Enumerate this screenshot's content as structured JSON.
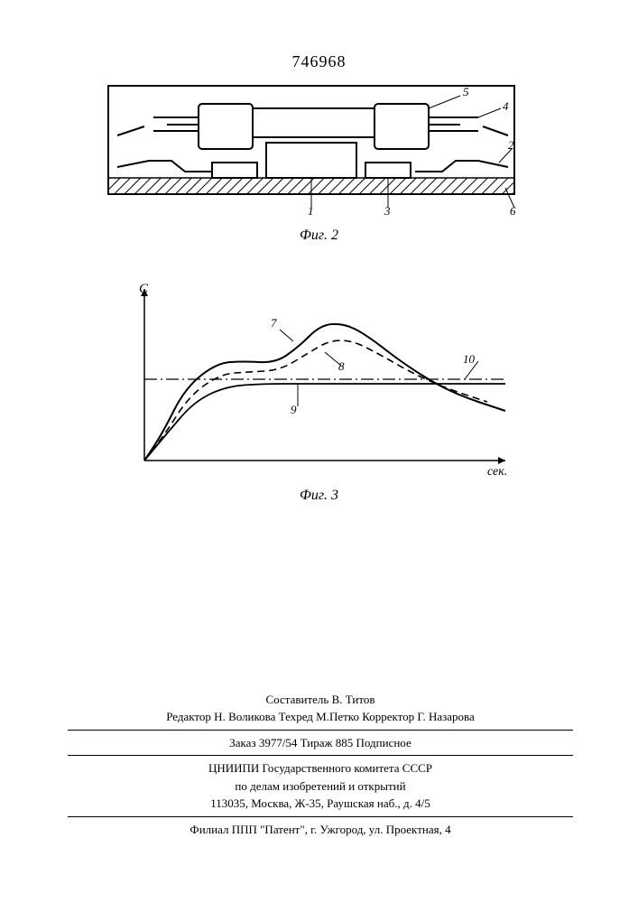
{
  "patent_number": "746968",
  "fig2": {
    "label": "Фиг. 2",
    "callouts": [
      "1",
      "2",
      "3",
      "4",
      "5",
      "6"
    ],
    "colors": {
      "stroke": "#000000",
      "hatch": "#000000",
      "background": "#ffffff"
    },
    "line_width": 1.5,
    "hatch_band_height": 16
  },
  "fig3": {
    "label": "Фиг. 3",
    "axes": {
      "ylabel": "C",
      "xlabel": "сек."
    },
    "curves": {
      "7": {
        "label": "7",
        "style": "solid",
        "points": [
          [
            0,
            0
          ],
          [
            20,
            30
          ],
          [
            45,
            80
          ],
          [
            80,
            108
          ],
          [
            110,
            110
          ],
          [
            145,
            108
          ],
          [
            170,
            125
          ],
          [
            195,
            150
          ],
          [
            220,
            152
          ],
          [
            245,
            140
          ],
          [
            290,
            105
          ],
          [
            340,
            75
          ],
          [
            400,
            55
          ]
        ]
      },
      "8": {
        "label": "8",
        "style": "dashed",
        "points": [
          [
            0,
            0
          ],
          [
            22,
            28
          ],
          [
            50,
            72
          ],
          [
            85,
            96
          ],
          [
            115,
            98
          ],
          [
            150,
            100
          ],
          [
            180,
            118
          ],
          [
            205,
            133
          ],
          [
            230,
            133
          ],
          [
            260,
            118
          ],
          [
            300,
            95
          ],
          [
            340,
            78
          ],
          [
            380,
            65
          ]
        ]
      },
      "9": {
        "label": "9",
        "style": "solid",
        "points": [
          [
            0,
            0
          ],
          [
            25,
            30
          ],
          [
            55,
            65
          ],
          [
            90,
            82
          ],
          [
            130,
            85
          ],
          [
            180,
            85
          ],
          [
            250,
            85
          ],
          [
            330,
            85
          ],
          [
            400,
            85
          ]
        ]
      },
      "10": {
        "label": "10",
        "style": "dashdot",
        "y": 90
      }
    },
    "colors": {
      "stroke": "#000000",
      "background": "#ffffff"
    },
    "axis_arrow": 6,
    "line_width_main": 2,
    "line_width_thin": 1.2
  },
  "colophon": {
    "composer_line": "Составитель В. Титов",
    "editor_line": "Редактор Н. Воликова   Техред М.Петко   Корректор Г. Назарова",
    "order_line": "Заказ 3977/54          Тираж 885          Подписное",
    "org_line1": "ЦНИИПИ Государственного комитета СССР",
    "org_line2": "по делам изобретений и открытий",
    "address_line": "113035, Москва, Ж-35, Раушская наб., д. 4/5",
    "branch_line": "Филиал ППП \"Патент\", г. Ужгород, ул. Проектная, 4"
  }
}
